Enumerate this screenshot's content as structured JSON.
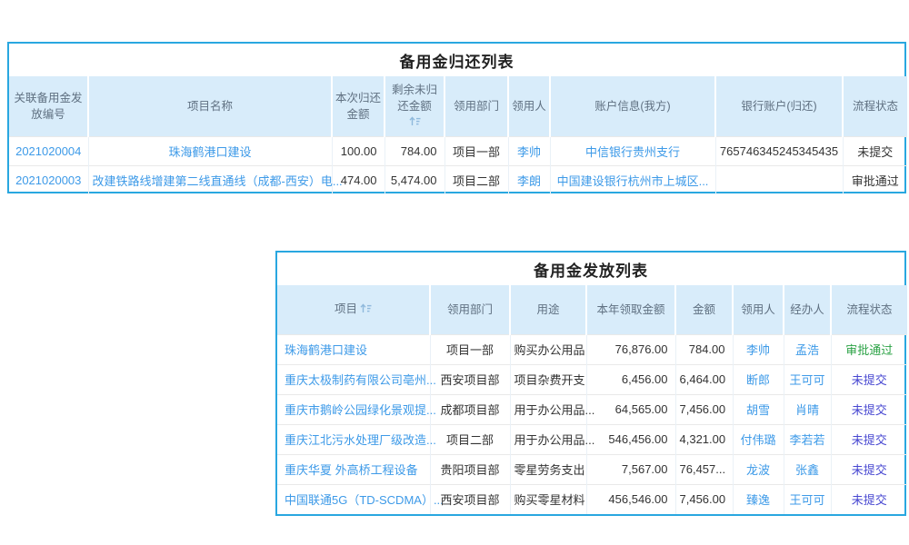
{
  "colors": {
    "panel_border": "#29a7e0",
    "header_bg": "#d8ecfa",
    "header_text": "#5f7081",
    "link_text": "#3d9ae8",
    "status_approved_green": "#2ba245",
    "status_unsubmitted_violet": "#4747d1",
    "sort_icon": "#8fb9dc"
  },
  "return_table": {
    "title": "备用金归还列表",
    "columns": [
      {
        "label": "关联备用金发放编号",
        "sortable": false
      },
      {
        "label": "项目名称",
        "sortable": false
      },
      {
        "label": "本次归还金额",
        "sortable": false
      },
      {
        "label": "剩余未归还金额",
        "sortable": true
      },
      {
        "label": "领用部门",
        "sortable": false
      },
      {
        "label": "领用人",
        "sortable": false
      },
      {
        "label": "账户信息(我方)",
        "sortable": false
      },
      {
        "label": "银行账户(归还)",
        "sortable": false
      },
      {
        "label": "流程状态",
        "sortable": false
      }
    ],
    "link_cols": [
      0,
      1,
      5,
      6
    ],
    "status_col": 8,
    "status_colors": {},
    "rows": [
      [
        "2021020004",
        "珠海鹤港口建设",
        "100.00",
        "784.00",
        "项目一部",
        "李帅",
        "中信银行贵州支行",
        "765746345245345435",
        "未提交"
      ],
      [
        "2021020003",
        "改建铁路线增建第二线直通线（成都-西安）电...",
        "474.00",
        "5,474.00",
        "项目二部",
        "李朗",
        "中国建设银行杭州市上城区...",
        "",
        "审批通过"
      ]
    ]
  },
  "issue_table": {
    "title": "备用金发放列表",
    "columns": [
      {
        "label": "项目",
        "sortable": true
      },
      {
        "label": "领用部门",
        "sortable": false
      },
      {
        "label": "用途",
        "sortable": false
      },
      {
        "label": "本年领取金额",
        "sortable": false
      },
      {
        "label": "金额",
        "sortable": false
      },
      {
        "label": "领用人",
        "sortable": false
      },
      {
        "label": "经办人",
        "sortable": false
      },
      {
        "label": "流程状态",
        "sortable": false
      }
    ],
    "link_cols": [
      0,
      5,
      6
    ],
    "status_col": 7,
    "status_colors": {
      "审批通过": "#2ba245",
      "未提交": "#4747d1"
    },
    "rows": [
      [
        "珠海鹤港口建设",
        "项目一部",
        "购买办公用品",
        "76,876.00",
        "784.00",
        "李帅",
        "孟浩",
        "审批通过"
      ],
      [
        "重庆太极制药有限公司亳州...",
        "西安项目部",
        "项目杂费开支",
        "6,456.00",
        "6,464.00",
        "断郎",
        "王可可",
        "未提交"
      ],
      [
        "重庆市鹅岭公园绿化景观提...",
        "成都项目部",
        "用于办公用品...",
        "64,565.00",
        "7,456.00",
        "胡雪",
        "肖晴",
        "未提交"
      ],
      [
        "重庆江北污水处理厂级改造...",
        "项目二部",
        "用于办公用品...",
        "546,456.00",
        "4,321.00",
        "付伟璐",
        "李若若",
        "未提交"
      ],
      [
        "重庆华夏 外高桥工程设备",
        "贵阳项目部",
        "零星劳务支出",
        "7,567.00",
        "76,457...",
        "龙波",
        "张鑫",
        "未提交"
      ],
      [
        "中国联通5G（TD-SCDMA）...",
        "西安项目部",
        "购买零星材料",
        "456,546.00",
        "7,456.00",
        "臻逸",
        "王可可",
        "未提交"
      ]
    ]
  }
}
